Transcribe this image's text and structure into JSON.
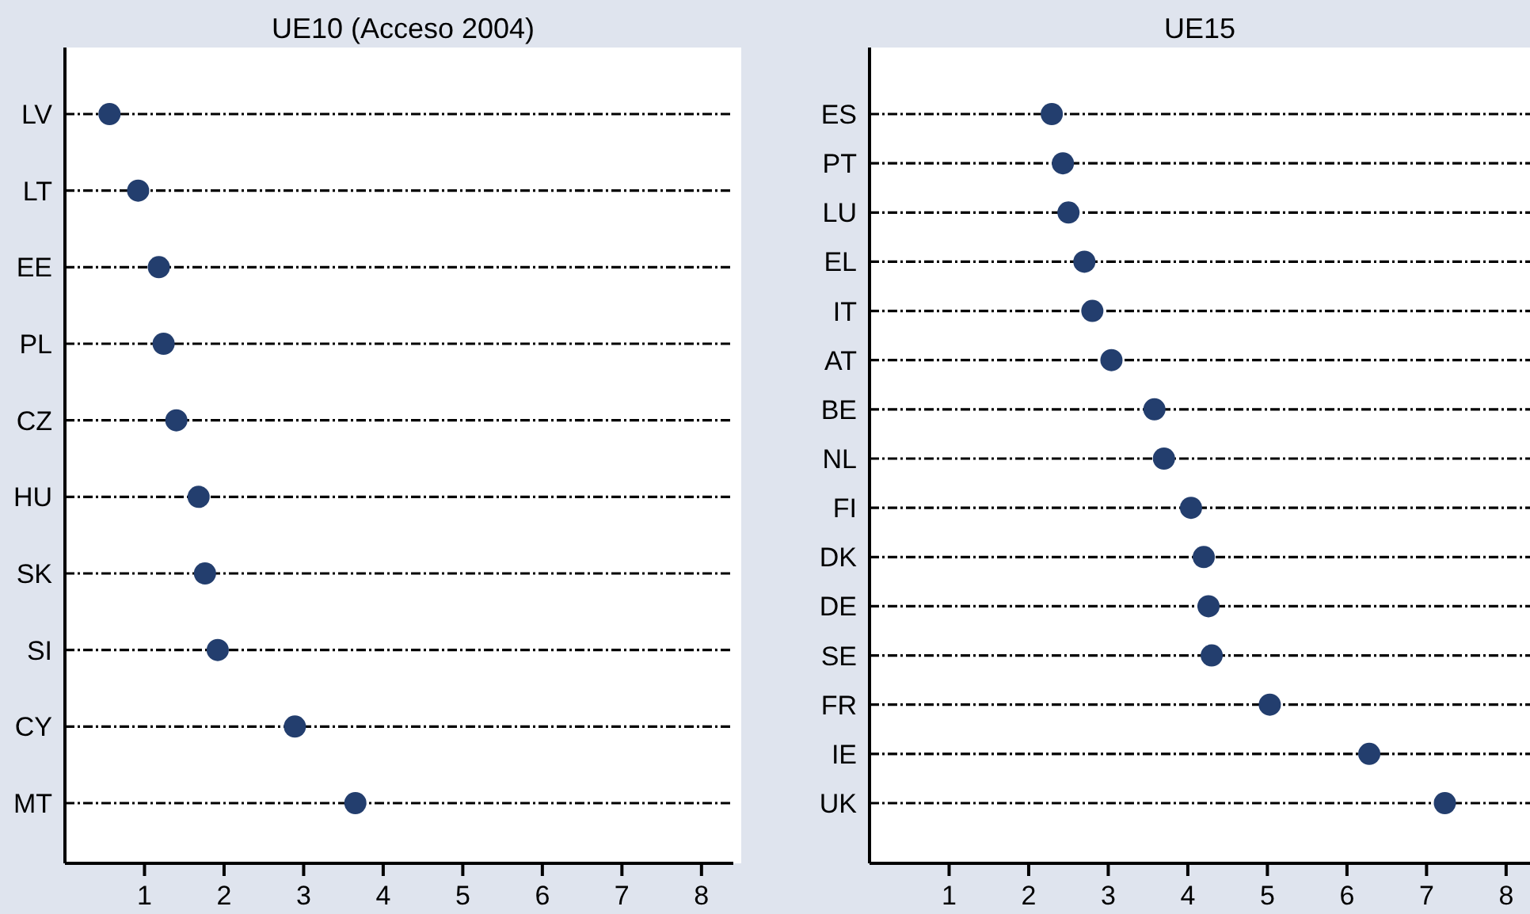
{
  "chart_data": [
    {
      "type": "scatter",
      "title": "UE10 (Acceso 2004)",
      "orientation": "horizontal",
      "categories": [
        "LV",
        "LT",
        "EE",
        "PL",
        "CZ",
        "HU",
        "SK",
        "SI",
        "CY",
        "MT"
      ],
      "values": [
        0.56,
        0.92,
        1.18,
        1.24,
        1.4,
        1.68,
        1.76,
        1.92,
        2.89,
        3.65
      ],
      "color": "#233e6e",
      "xlim": [
        0,
        8.4
      ],
      "xticks": [
        1,
        2,
        3,
        4,
        5,
        6,
        7,
        8
      ],
      "grid": "y",
      "line_style": "dashed",
      "marker": "circle"
    },
    {
      "type": "scatter",
      "title": "UE15",
      "orientation": "horizontal",
      "categories": [
        "ES",
        "PT",
        "LU",
        "EL",
        "IT",
        "AT",
        "BE",
        "NL",
        "FI",
        "DK",
        "DE",
        "SE",
        "FR",
        "IE",
        "UK"
      ],
      "values": [
        2.29,
        2.43,
        2.5,
        2.7,
        2.8,
        3.04,
        3.58,
        3.7,
        4.04,
        4.2,
        4.26,
        4.3,
        5.03,
        6.28,
        7.23
      ],
      "color": "#233e6e",
      "xlim": [
        0,
        8.3
      ],
      "xticks": [
        1,
        2,
        3,
        4,
        5,
        6,
        7,
        8
      ],
      "grid": "y",
      "line_style": "dashed",
      "marker": "circle"
    }
  ]
}
